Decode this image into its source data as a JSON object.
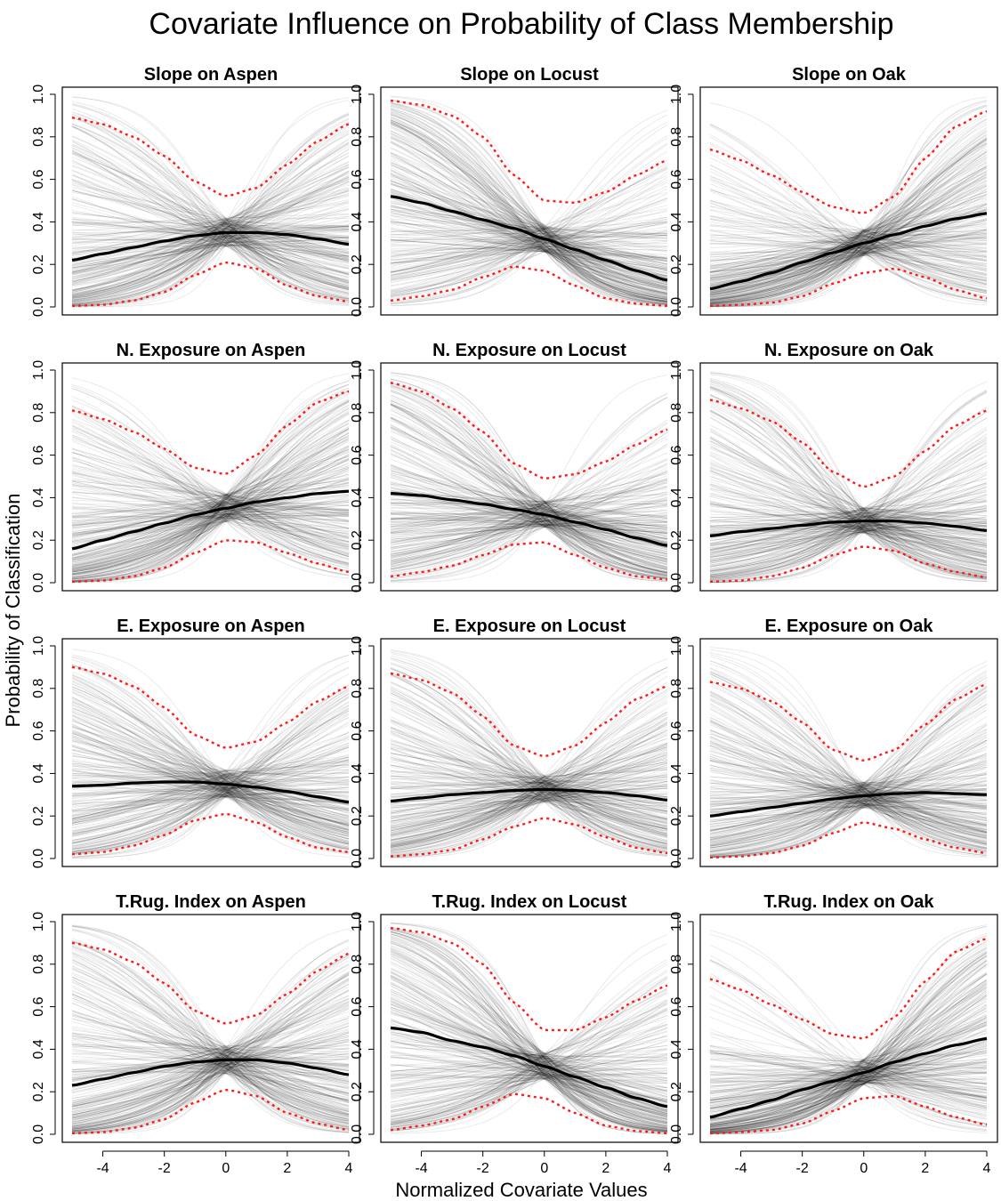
{
  "chart_data": {
    "type": "line",
    "title": "Covariate Influence on Probability of Class Membership",
    "xlabel": "Normalized Covariate Values",
    "ylabel": "Probability of Classification",
    "xlim": [
      -5,
      4
    ],
    "ylim": [
      0,
      1
    ],
    "x_ticks": [
      -4,
      -2,
      0,
      2,
      4
    ],
    "y_ticks": [
      0.0,
      0.2,
      0.4,
      0.6,
      0.8,
      1.0
    ],
    "x_tick_labels": [
      "-4",
      "-2",
      "0",
      "2",
      "4"
    ],
    "y_tick_labels": [
      "0.0",
      "0.2",
      "0.4",
      "0.6",
      "0.8",
      "1.0"
    ],
    "grid": false,
    "colors": {
      "mean": "#000000",
      "interval": "#ff1a1a",
      "draws": "#000000"
    },
    "x": [
      -5,
      -4,
      -3,
      -2,
      -1,
      0,
      1,
      2,
      3,
      4
    ],
    "panels": [
      {
        "title": "Slope on Aspen",
        "series": [
          {
            "role": "mean",
            "values": [
              0.22,
              0.25,
              0.28,
              0.31,
              0.335,
              0.35,
              0.35,
              0.34,
              0.32,
              0.295
            ]
          },
          {
            "role": "upper",
            "values": [
              0.89,
              0.86,
              0.8,
              0.71,
              0.59,
              0.52,
              0.56,
              0.67,
              0.78,
              0.86
            ]
          },
          {
            "role": "lower",
            "values": [
              0.005,
              0.01,
              0.03,
              0.07,
              0.15,
              0.21,
              0.18,
              0.1,
              0.05,
              0.025
            ]
          }
        ]
      },
      {
        "title": "Slope on Locust",
        "series": [
          {
            "role": "mean",
            "values": [
              0.52,
              0.49,
              0.45,
              0.41,
              0.37,
              0.32,
              0.27,
              0.22,
              0.17,
              0.125
            ]
          },
          {
            "role": "upper",
            "values": [
              0.97,
              0.95,
              0.9,
              0.8,
              0.62,
              0.5,
              0.49,
              0.54,
              0.62,
              0.69
            ]
          },
          {
            "role": "lower",
            "values": [
              0.03,
              0.05,
              0.08,
              0.14,
              0.19,
              0.17,
              0.1,
              0.04,
              0.015,
              0.005
            ]
          }
        ]
      },
      {
        "title": "Slope on Oak",
        "series": [
          {
            "role": "mean",
            "values": [
              0.085,
              0.12,
              0.16,
              0.21,
              0.255,
              0.3,
              0.34,
              0.38,
              0.415,
              0.44
            ]
          },
          {
            "role": "upper",
            "values": [
              0.74,
              0.69,
              0.62,
              0.54,
              0.47,
              0.44,
              0.52,
              0.7,
              0.85,
              0.92
            ]
          },
          {
            "role": "lower",
            "values": [
              0.005,
              0.01,
              0.02,
              0.05,
              0.11,
              0.16,
              0.18,
              0.14,
              0.08,
              0.04
            ]
          }
        ]
      },
      {
        "title": "N. Exposure on Aspen",
        "series": [
          {
            "role": "mean",
            "values": [
              0.16,
              0.2,
              0.24,
              0.28,
              0.32,
              0.35,
              0.38,
              0.4,
              0.42,
              0.43
            ]
          },
          {
            "role": "upper",
            "values": [
              0.81,
              0.77,
              0.71,
              0.63,
              0.54,
              0.51,
              0.6,
              0.74,
              0.85,
              0.9
            ]
          },
          {
            "role": "lower",
            "values": [
              0.005,
              0.01,
              0.03,
              0.07,
              0.14,
              0.2,
              0.19,
              0.14,
              0.09,
              0.05
            ]
          }
        ]
      },
      {
        "title": "N. Exposure on Locust",
        "series": [
          {
            "role": "mean",
            "values": [
              0.42,
              0.41,
              0.39,
              0.37,
              0.345,
              0.32,
              0.285,
              0.25,
              0.21,
              0.175
            ]
          },
          {
            "role": "upper",
            "values": [
              0.94,
              0.9,
              0.82,
              0.71,
              0.56,
              0.49,
              0.51,
              0.57,
              0.65,
              0.72
            ]
          },
          {
            "role": "lower",
            "values": [
              0.03,
              0.05,
              0.08,
              0.13,
              0.18,
              0.19,
              0.13,
              0.07,
              0.03,
              0.015
            ]
          }
        ]
      },
      {
        "title": "N. Exposure on Oak",
        "series": [
          {
            "role": "mean",
            "values": [
              0.22,
              0.24,
              0.255,
              0.27,
              0.285,
              0.29,
              0.29,
              0.28,
              0.265,
              0.245
            ]
          },
          {
            "role": "upper",
            "values": [
              0.86,
              0.82,
              0.76,
              0.66,
              0.52,
              0.45,
              0.5,
              0.62,
              0.74,
              0.81
            ]
          },
          {
            "role": "lower",
            "values": [
              0.005,
              0.01,
              0.03,
              0.07,
              0.13,
              0.17,
              0.15,
              0.09,
              0.05,
              0.025
            ]
          }
        ]
      },
      {
        "title": "E. Exposure on Aspen",
        "series": [
          {
            "role": "mean",
            "values": [
              0.34,
              0.345,
              0.355,
              0.36,
              0.36,
              0.35,
              0.335,
              0.315,
              0.29,
              0.265
            ]
          },
          {
            "role": "upper",
            "values": [
              0.9,
              0.87,
              0.81,
              0.71,
              0.58,
              0.52,
              0.55,
              0.64,
              0.74,
              0.81
            ]
          },
          {
            "role": "lower",
            "values": [
              0.02,
              0.03,
              0.06,
              0.11,
              0.18,
              0.21,
              0.17,
              0.1,
              0.05,
              0.03
            ]
          }
        ]
      },
      {
        "title": "E. Exposure on Locust",
        "series": [
          {
            "role": "mean",
            "values": [
              0.27,
              0.285,
              0.3,
              0.31,
              0.32,
              0.325,
              0.32,
              0.31,
              0.295,
              0.275
            ]
          },
          {
            "role": "upper",
            "values": [
              0.87,
              0.84,
              0.78,
              0.67,
              0.53,
              0.48,
              0.53,
              0.64,
              0.75,
              0.81
            ]
          },
          {
            "role": "lower",
            "values": [
              0.01,
              0.02,
              0.04,
              0.09,
              0.15,
              0.19,
              0.16,
              0.1,
              0.05,
              0.025
            ]
          }
        ]
      },
      {
        "title": "E. Exposure on Oak",
        "series": [
          {
            "role": "mean",
            "values": [
              0.2,
              0.22,
              0.24,
              0.26,
              0.28,
              0.295,
              0.305,
              0.31,
              0.305,
              0.3
            ]
          },
          {
            "role": "upper",
            "values": [
              0.83,
              0.8,
              0.74,
              0.64,
              0.51,
              0.46,
              0.51,
              0.63,
              0.75,
              0.82
            ]
          },
          {
            "role": "lower",
            "values": [
              0.005,
              0.01,
              0.025,
              0.06,
              0.12,
              0.17,
              0.14,
              0.09,
              0.05,
              0.025
            ]
          }
        ]
      },
      {
        "title": "T.Rug. Index on Aspen",
        "series": [
          {
            "role": "mean",
            "values": [
              0.23,
              0.26,
              0.29,
              0.32,
              0.34,
              0.35,
              0.35,
              0.335,
              0.31,
              0.28
            ]
          },
          {
            "role": "upper",
            "values": [
              0.9,
              0.87,
              0.81,
              0.71,
              0.58,
              0.52,
              0.56,
              0.66,
              0.77,
              0.85
            ]
          },
          {
            "role": "lower",
            "values": [
              0.005,
              0.01,
              0.03,
              0.07,
              0.15,
              0.21,
              0.18,
              0.1,
              0.05,
              0.02
            ]
          }
        ]
      },
      {
        "title": "T.Rug. Index on Locust",
        "series": [
          {
            "role": "mean",
            "values": [
              0.5,
              0.48,
              0.44,
              0.41,
              0.37,
              0.32,
              0.27,
              0.22,
              0.17,
              0.13
            ]
          },
          {
            "role": "upper",
            "values": [
              0.97,
              0.95,
              0.9,
              0.8,
              0.62,
              0.49,
              0.49,
              0.55,
              0.63,
              0.7
            ]
          },
          {
            "role": "lower",
            "values": [
              0.02,
              0.04,
              0.07,
              0.13,
              0.19,
              0.17,
              0.1,
              0.04,
              0.015,
              0.005
            ]
          }
        ]
      },
      {
        "title": "T.Rug. Index on Oak",
        "series": [
          {
            "role": "mean",
            "values": [
              0.08,
              0.12,
              0.16,
              0.21,
              0.25,
              0.29,
              0.34,
              0.38,
              0.42,
              0.45
            ]
          },
          {
            "role": "upper",
            "values": [
              0.73,
              0.68,
              0.61,
              0.54,
              0.47,
              0.45,
              0.55,
              0.72,
              0.86,
              0.92
            ]
          },
          {
            "role": "lower",
            "values": [
              0.005,
              0.01,
              0.02,
              0.05,
              0.11,
              0.17,
              0.18,
              0.13,
              0.08,
              0.045
            ]
          }
        ]
      }
    ]
  }
}
